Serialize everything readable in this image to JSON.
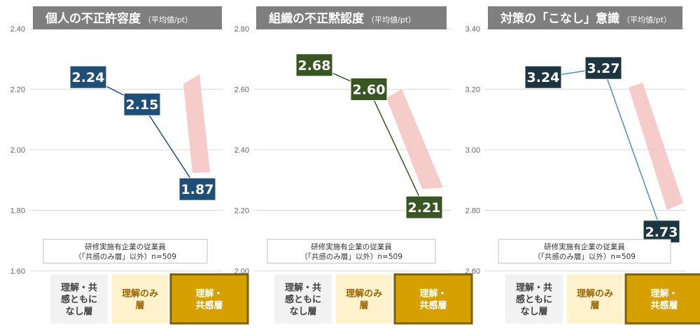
{
  "chart_data": [
    {
      "type": "line",
      "title": "個人の不正許容度",
      "subtitle": "（平均値/pt）",
      "categories": [
        "理解・共感ともになし層",
        "理解のみ層",
        "理解・共感層"
      ],
      "values": [
        2.24,
        2.15,
        1.87
      ],
      "ylim": [
        1.6,
        2.4
      ],
      "yticks": [
        "1.60",
        "1.80",
        "2.00",
        "2.20",
        "2.40"
      ],
      "tick_step": 0.2,
      "grid": true,
      "box_color": "#1f4e79",
      "line_color": "#1f4e79",
      "note": [
        "研修実施有企業の従業員",
        "（「共感のみ層」以外）n=509"
      ],
      "category_labels": [
        [
          "理解・共",
          "感ともに",
          "なし層"
        ],
        [
          "理解のみ",
          "層"
        ],
        [
          "理解・",
          "共感層"
        ]
      ]
    },
    {
      "type": "line",
      "title": "組織の不正黙認度",
      "subtitle": "（平均値/pt）",
      "categories": [
        "理解・共感ともになし層",
        "理解のみ層",
        "理解・共感層"
      ],
      "values": [
        2.68,
        2.6,
        2.21
      ],
      "ylim": [
        2.0,
        2.8
      ],
      "yticks": [
        "2.00",
        "2.20",
        "2.40",
        "2.60",
        "2.80"
      ],
      "tick_step": 0.2,
      "grid": true,
      "box_color": "#375623",
      "line_color": "#375623",
      "note": [
        "研修実施有企業の従業員",
        "（「共感のみ層」以外）n=509"
      ],
      "category_labels": [
        [
          "理解・共",
          "感ともに",
          "なし層"
        ],
        [
          "理解のみ",
          "層"
        ],
        [
          "理解・",
          "共感層"
        ]
      ]
    },
    {
      "type": "line",
      "title": "対策の「こなし」意識",
      "subtitle": "（平均値/pt）",
      "categories": [
        "理解・共感ともになし層",
        "理解のみ層",
        "理解・共感層"
      ],
      "values": [
        3.24,
        3.27,
        2.73
      ],
      "ylim": [
        2.6,
        3.4
      ],
      "yticks": [
        "2.60",
        "2.80",
        "3.00",
        "3.20",
        "3.40"
      ],
      "tick_step": 0.2,
      "grid": true,
      "box_color": "#1d3441",
      "line_color": "#4a90b8",
      "note": [
        "研修実施有企業の従業員",
        "（「共感のみ層」以外）n=509"
      ],
      "category_labels": [
        [
          "理解・共",
          "感ともに",
          "なし層"
        ],
        [
          "理解のみ",
          "層"
        ],
        [
          "理解・",
          "共感層"
        ]
      ]
    }
  ],
  "colors": {
    "title_bg": "#7f7f7f",
    "grid": "#d9d9d9",
    "arrow": "#f4c7c3",
    "cat1_bg": "#f2f2f2",
    "cat2_bg": "#fff2cc",
    "cat3_bg": "#d6a100",
    "cat3_border": "#7f6000",
    "cat_text_dark": "#404040",
    "cat_text_mid": "#9c6500",
    "cat_text_light": "#ffffff"
  }
}
